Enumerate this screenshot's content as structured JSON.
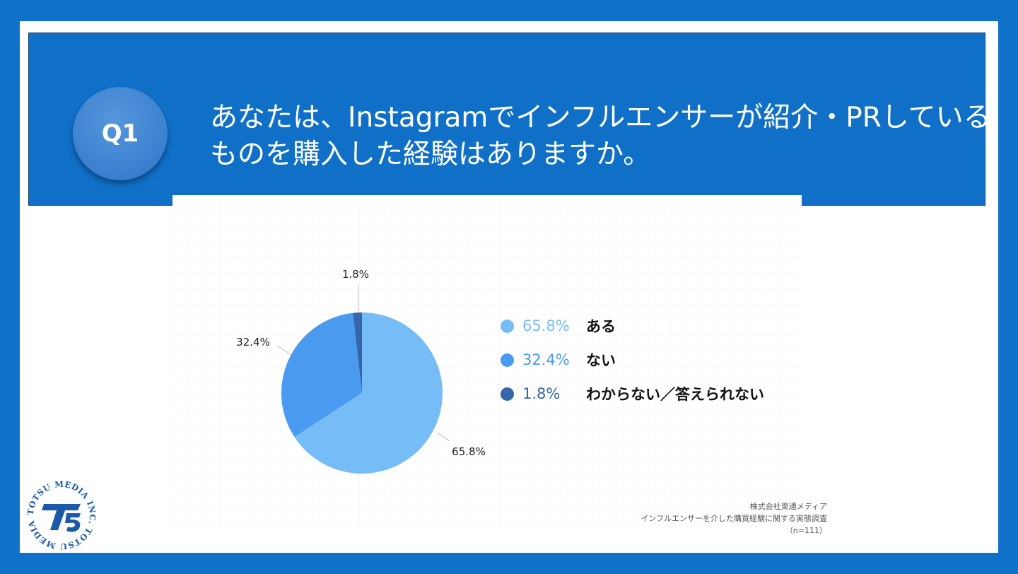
{
  "question": {
    "badge": "Q1",
    "line1": "あなたは、Instagramでインフルエンサーが紹介・PRしている",
    "line2": "ものを購入した経験はありますか。"
  },
  "chart_data": {
    "type": "pie",
    "slices": [
      {
        "label": "ある",
        "value": 65.8,
        "value_label": "65.8%",
        "color": "#76bdf7"
      },
      {
        "label": "ない",
        "value": 32.4,
        "value_label": "32.4%",
        "color": "#4a9bf0"
      },
      {
        "label": "わからない／答えられない",
        "value": 1.8,
        "value_label": "1.8%",
        "color": "#3466a8"
      }
    ]
  },
  "source": {
    "company": "株式会社東通メディア",
    "survey": "インフルエンサーを介した購買経験に関する実態調査",
    "sample": "（n=111）"
  },
  "logo": {
    "text": "TOTSU MEDIA INC. TOTSU MEDIA INC.",
    "mark": "TS"
  },
  "colors": {
    "background": "#1071c8",
    "header": "#1070c8",
    "badge": "#3b7fcf"
  }
}
